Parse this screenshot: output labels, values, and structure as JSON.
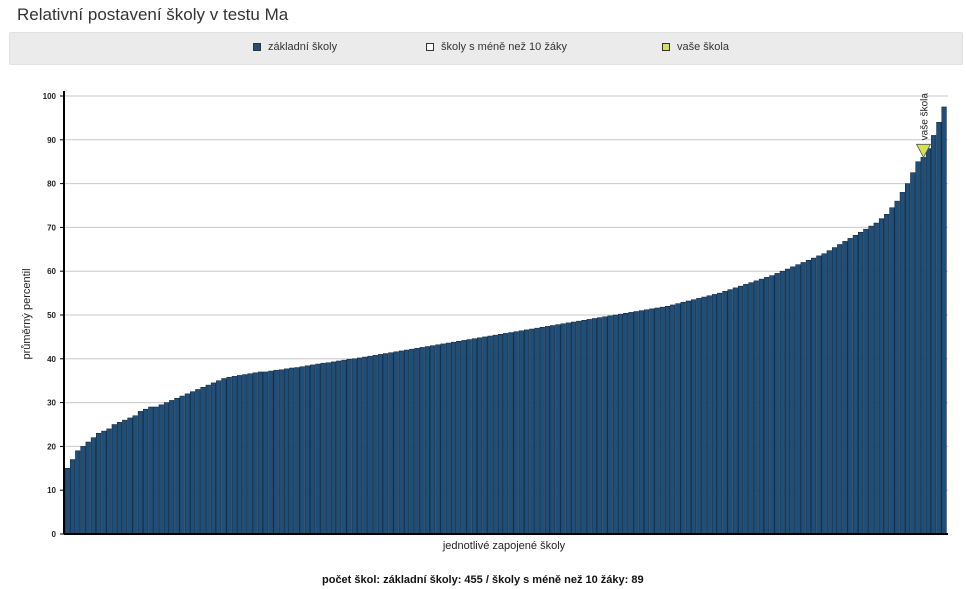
{
  "title": "Relativní postavení školy v testu Ma",
  "legend": {
    "items": [
      {
        "label": "základní školy",
        "color": "#1f4e79"
      },
      {
        "label": "školy s méně než 10 žáky",
        "color": "#ffffff"
      },
      {
        "label": "vaše škola",
        "color": "#d4e157"
      }
    ]
  },
  "footer": "počet škol: základní školy: 455 / školy s méně než 10 žáky: 89",
  "chart_data": {
    "type": "bar",
    "xlabel": "jednotlivé zapojené školy",
    "ylabel": "průměrný percentil",
    "ylim": [
      0,
      100
    ],
    "yticks": [
      0,
      10,
      20,
      30,
      40,
      50,
      60,
      70,
      80,
      90,
      100
    ],
    "grid": true,
    "bar_color": "#1f4e79",
    "your_school": {
      "label": "vaše škola",
      "value": 86,
      "color": "#d4e157"
    },
    "series": [
      {
        "values": [
          15,
          17,
          19,
          20,
          21,
          22,
          23,
          23.5,
          24,
          25,
          25.5,
          26,
          26.5,
          27,
          28,
          28.5,
          29,
          29,
          29.5,
          30,
          30.5,
          31,
          31.5,
          32,
          32.5,
          33,
          33.5,
          34,
          34.5,
          35,
          35.5,
          35.8,
          36,
          36.2,
          36.4,
          36.6,
          36.8,
          37,
          37,
          37.2,
          37.4,
          37.5,
          37.7,
          37.9,
          38,
          38.2,
          38.4,
          38.6,
          38.8,
          39,
          39.1,
          39.3,
          39.5,
          39.7,
          39.9,
          40,
          40.2,
          40.4,
          40.6,
          40.8,
          41,
          41.2,
          41.4,
          41.6,
          41.8,
          42,
          42.2,
          42.4,
          42.6,
          42.8,
          43,
          43.2,
          43.4,
          43.6,
          43.8,
          44,
          44.2,
          44.4,
          44.6,
          44.8,
          45,
          45.2,
          45.4,
          45.6,
          45.8,
          46,
          46.2,
          46.4,
          46.6,
          46.8,
          47,
          47.2,
          47.4,
          47.6,
          47.8,
          48,
          48.2,
          48.4,
          48.6,
          48.8,
          49,
          49.2,
          49.4,
          49.6,
          49.8,
          50,
          50.2,
          50.4,
          50.6,
          50.8,
          51,
          51.2,
          51.4,
          51.6,
          51.8,
          52,
          52.3,
          52.6,
          52.9,
          53.2,
          53.5,
          53.8,
          54.1,
          54.4,
          54.7,
          55,
          55.4,
          55.8,
          56.2,
          56.6,
          57,
          57.4,
          57.8,
          58.2,
          58.6,
          59,
          59.5,
          60,
          60.5,
          61,
          61.5,
          62,
          62.5,
          63,
          63.5,
          64,
          64.7,
          65.4,
          66.1,
          66.8,
          67.5,
          68.2,
          68.9,
          69.6,
          70.3,
          71,
          72,
          73,
          74.5,
          76,
          78,
          80,
          82.5,
          85,
          86,
          88,
          91,
          94,
          97.5
        ]
      }
    ]
  }
}
